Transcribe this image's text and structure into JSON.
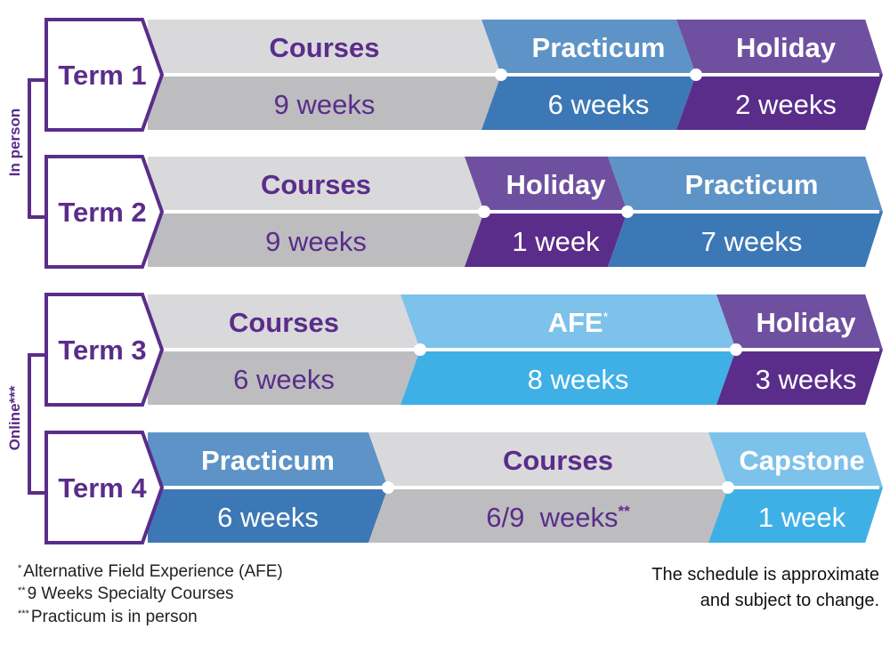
{
  "colors": {
    "purple": "#5a2d8a",
    "purple_light": "#6f50a0",
    "blue": "#3c78b5",
    "blue_light": "#5e93c7",
    "cyan": "#3fb0e6",
    "cyan_light": "#7cc2ea",
    "gray": "#bdbdbf",
    "gray_light": "#d9d9db",
    "line": "#ffffff"
  },
  "groups": [
    {
      "label": "In person",
      "terms": [
        0,
        1
      ]
    },
    {
      "label": "Online***",
      "terms": [
        2,
        3
      ]
    }
  ],
  "terms": [
    {
      "label": "Term 1",
      "segments": [
        {
          "title": "Courses",
          "duration": "9 weeks",
          "kind": "courses"
        },
        {
          "title": "Practicum",
          "duration": "6 weeks",
          "kind": "practicum"
        },
        {
          "title": "Holiday",
          "duration": "2 weeks",
          "kind": "holiday"
        }
      ]
    },
    {
      "label": "Term 2",
      "segments": [
        {
          "title": "Courses",
          "duration": "9 weeks",
          "kind": "courses"
        },
        {
          "title": "Holiday",
          "duration": "1 week",
          "kind": "holiday"
        },
        {
          "title": "Practicum",
          "duration": "7 weeks",
          "kind": "practicum"
        }
      ]
    },
    {
      "label": "Term 3",
      "segments": [
        {
          "title": "Courses",
          "duration": "6 weeks",
          "kind": "courses"
        },
        {
          "title": "AFE",
          "title_mark": "*",
          "duration": "8 weeks",
          "kind": "afe"
        },
        {
          "title": "Holiday",
          "duration": "3 weeks",
          "kind": "holiday"
        }
      ]
    },
    {
      "label": "Term 4",
      "segments": [
        {
          "title": "Practicum",
          "duration": "6 weeks",
          "kind": "practicum"
        },
        {
          "title": "Courses",
          "duration": "6/9  weeks",
          "duration_mark": "**",
          "kind": "courses"
        },
        {
          "title": "Capstone",
          "duration": "1 week",
          "kind": "capstone"
        }
      ]
    }
  ],
  "footnotes": [
    {
      "mark": "*",
      "text": "Alternative Field Experience (AFE)"
    },
    {
      "mark": "**",
      "text": "9 Weeks Specialty Courses"
    },
    {
      "mark": "***",
      "text": "Practicum is in person"
    }
  ],
  "disclaimer": {
    "line1": "The schedule is approximate",
    "line2": "and subject to change."
  }
}
